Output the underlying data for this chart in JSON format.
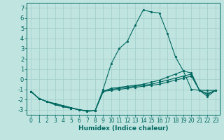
{
  "xlabel": "Humidex (Indice chaleur)",
  "background_color": "#c0e4e0",
  "grid_color": "#a0ccc8",
  "line_color": "#006860",
  "xlim": [
    -0.5,
    23.5
  ],
  "ylim": [
    -3.5,
    7.5
  ],
  "xticks": [
    0,
    1,
    2,
    3,
    4,
    5,
    6,
    7,
    8,
    9,
    10,
    11,
    12,
    13,
    14,
    15,
    16,
    17,
    18,
    19,
    20,
    21,
    22,
    23
  ],
  "yticks": [
    -3,
    -2,
    -1,
    0,
    1,
    2,
    3,
    4,
    5,
    6,
    7
  ],
  "series": [
    {
      "x": [
        0,
        1,
        2,
        3,
        4,
        5,
        6,
        7,
        8,
        9,
        10,
        11,
        12,
        13,
        14,
        15,
        16,
        17,
        18,
        19,
        20,
        21,
        22,
        23
      ],
      "y": [
        -1.2,
        -1.9,
        -2.2,
        -2.5,
        -2.7,
        -2.85,
        -3.0,
        -3.15,
        -3.1,
        -1.0,
        1.5,
        3.0,
        3.7,
        5.3,
        6.8,
        6.6,
        6.5,
        4.5,
        2.2,
        0.8,
        -1.0,
        -1.1,
        -1.1,
        -1.1
      ]
    },
    {
      "x": [
        0,
        1,
        2,
        3,
        4,
        5,
        6,
        7,
        8,
        9,
        10,
        11,
        12,
        13,
        14,
        15,
        16,
        17,
        18,
        19,
        20,
        21,
        22,
        23
      ],
      "y": [
        -1.2,
        -1.9,
        -2.2,
        -2.5,
        -2.7,
        -2.85,
        -3.0,
        -3.15,
        -3.1,
        -1.2,
        -0.9,
        -0.8,
        -0.7,
        -0.6,
        -0.5,
        -0.3,
        -0.1,
        0.2,
        0.5,
        0.8,
        0.6,
        -1.1,
        -1.7,
        -1.1
      ]
    },
    {
      "x": [
        0,
        1,
        2,
        3,
        4,
        5,
        6,
        7,
        8,
        9,
        10,
        11,
        12,
        13,
        14,
        15,
        16,
        17,
        18,
        19,
        20,
        21,
        22,
        23
      ],
      "y": [
        -1.2,
        -1.9,
        -2.2,
        -2.4,
        -2.6,
        -2.8,
        -3.0,
        -3.1,
        -3.1,
        -1.2,
        -1.0,
        -0.9,
        -0.8,
        -0.7,
        -0.6,
        -0.5,
        -0.3,
        -0.1,
        0.1,
        0.3,
        0.5,
        -1.1,
        -1.5,
        -1.1
      ]
    },
    {
      "x": [
        0,
        1,
        2,
        3,
        4,
        5,
        6,
        7,
        8,
        9,
        10,
        11,
        12,
        13,
        14,
        15,
        16,
        17,
        18,
        19,
        20,
        21,
        22,
        23
      ],
      "y": [
        -1.2,
        -1.9,
        -2.2,
        -2.4,
        -2.6,
        -2.8,
        -3.0,
        -3.1,
        -3.1,
        -1.2,
        -1.1,
        -1.0,
        -0.9,
        -0.8,
        -0.7,
        -0.6,
        -0.5,
        -0.3,
        -0.1,
        0.1,
        0.3,
        -1.1,
        -1.4,
        -1.1
      ]
    }
  ]
}
